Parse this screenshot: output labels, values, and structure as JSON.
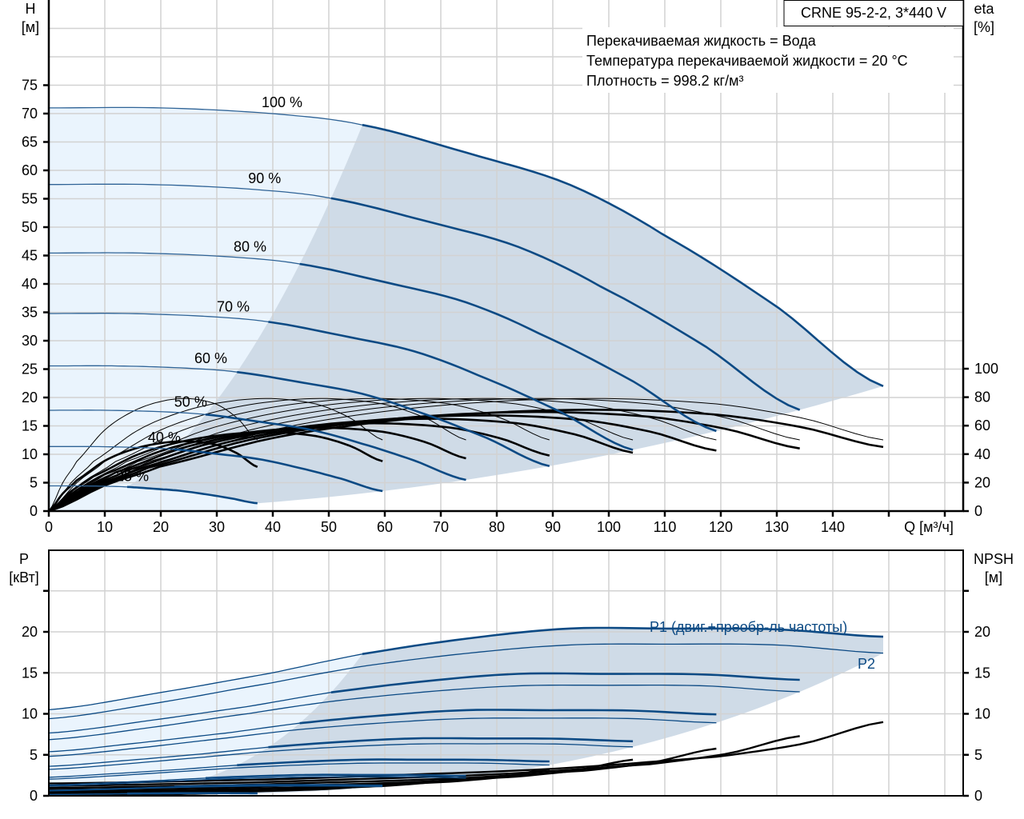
{
  "title_box": "CRNE 95-2-2, 3*440 V",
  "info": [
    "Перекачиваемая жидкость = Вода",
    "Температура перекачиваемой жидкости = 20 °C",
    "Плотность = 998.2 кг/м³"
  ],
  "colors": {
    "curve_blue": "#0c4a84",
    "light_region": "#eaf4fd",
    "dark_region": "#cfdbe7",
    "grid": "#d2d2d2"
  },
  "chart_data": [
    {
      "type": "line",
      "title": "H / eta",
      "ylabel": "H",
      "ylabel_unit": "[м]",
      "y2label": "eta",
      "y2label_unit": "[%]",
      "xlabel": "Q [м³/ч]",
      "xlim": [
        0,
        163
      ],
      "ylim": [
        0,
        90
      ],
      "y2lim": [
        0,
        100
      ],
      "xticks": [
        "0",
        "10",
        "20",
        "30",
        "40",
        "50",
        "60",
        "70",
        "80",
        "90",
        "100",
        "110",
        "120",
        "130",
        "140"
      ],
      "yticks": [
        "0",
        "5",
        "10",
        "15",
        "20",
        "25",
        "30",
        "35",
        "40",
        "45",
        "50",
        "55",
        "60",
        "65",
        "70",
        "75"
      ],
      "y2ticks": [
        "0",
        "20",
        "40",
        "60",
        "80",
        "100"
      ],
      "grid": true,
      "speeds": [
        1.0,
        0.9,
        0.8,
        0.7,
        0.6,
        0.5,
        0.4,
        0.25
      ],
      "speed_labels": [
        "100 %",
        "90 %",
        "80 %",
        "70 %",
        "60 %",
        "50 %",
        "40 %",
        "25 %"
      ],
      "h_curve_100": {
        "q": [
          0,
          20,
          40,
          56,
          75,
          93,
          110,
          130,
          149
        ],
        "h": [
          71,
          71,
          70,
          68,
          63,
          57.5,
          48.5,
          36,
          22
        ]
      },
      "eta_pump_100": {
        "q": [
          0,
          10,
          20,
          40,
          60,
          80,
          100,
          120,
          135,
          149
        ],
        "eta": [
          0,
          20,
          35,
          57,
          70,
          77,
          79,
          75,
          65,
          50
        ]
      },
      "eta_total_ratio": [
        0.9,
        0.88,
        0.85,
        0.82,
        0.78,
        0.74,
        0.7,
        0.62
      ],
      "min_flow_fraction_q": 56,
      "max_flow_q": 149
    },
    {
      "type": "line",
      "title": "P / NPSH",
      "ylabel": "P",
      "ylabel_unit": "[кВт]",
      "y2label": "NPSH",
      "y2label_unit": "[м]",
      "xlim": [
        0,
        163
      ],
      "ylim": [
        0,
        30
      ],
      "yticks": [
        "0",
        "5",
        "10",
        "15",
        "20"
      ],
      "y2ticks": [
        "0",
        "5",
        "10",
        "15",
        "20"
      ],
      "grid": true,
      "series_labels": {
        "p1": "P1 (двиг.+преобр-ль частоты)",
        "p2": "P2"
      },
      "p1_100": {
        "q": [
          0,
          20,
          40,
          56,
          75,
          93,
          110,
          130,
          149
        ],
        "p": [
          10.5,
          12.6,
          15.0,
          17.3,
          19.2,
          20.4,
          20.4,
          20.3,
          19.4
        ]
      },
      "p2_100": {
        "q": [
          0,
          20,
          40,
          56,
          75,
          93,
          110,
          130,
          149
        ],
        "p": [
          9.4,
          11.4,
          13.8,
          15.8,
          17.4,
          18.4,
          18.5,
          18.4,
          17.4
        ]
      },
      "npsh_100": {
        "q": [
          0,
          40,
          60,
          90,
          120,
          135,
          149
        ],
        "npsh": [
          1.5,
          2.0,
          2.5,
          3.3,
          4.8,
          6.4,
          9.0
        ]
      }
    }
  ]
}
